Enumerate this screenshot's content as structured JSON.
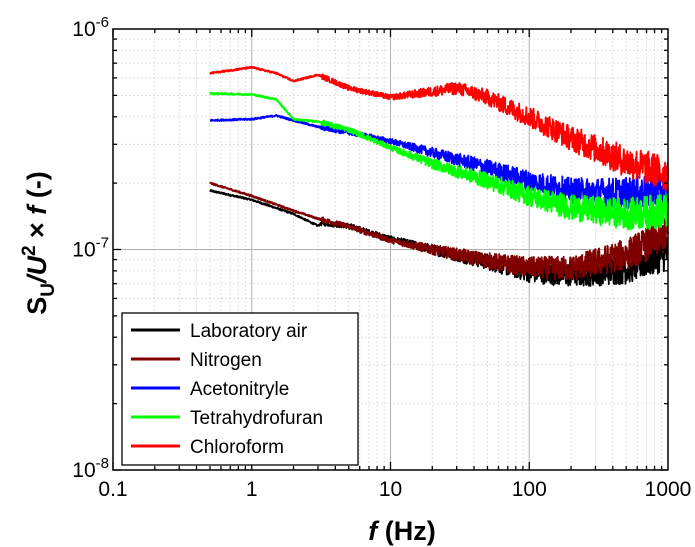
{
  "chart_data": {
    "type": "line",
    "xscale": "log",
    "yscale": "log",
    "xlim": [
      0.1,
      1000
    ],
    "ylim": [
      1e-08,
      1e-06
    ],
    "grid": true,
    "xlabel": {
      "italic": "f",
      "rest": " (Hz)"
    },
    "ylabel": {
      "S": "S",
      "sub": "U",
      "mid": "/U",
      "sup": "2",
      "times": " × ",
      "f": "f",
      "unit": " (-)"
    },
    "x_ticks": [
      {
        "value": 0.1,
        "label": "0.1"
      },
      {
        "value": 1,
        "label": "1"
      },
      {
        "value": 10,
        "label": "10"
      },
      {
        "value": 100,
        "label": "100"
      },
      {
        "value": 1000,
        "label": "1000"
      }
    ],
    "y_ticks": [
      {
        "value": 1e-08,
        "base": "10",
        "exp": "-8"
      },
      {
        "value": 1e-07,
        "base": "10",
        "exp": "-7"
      },
      {
        "value": 1e-06,
        "base": "10",
        "exp": "-6"
      }
    ],
    "legend_position": "bottom-left",
    "series": [
      {
        "name": "Laboratory air",
        "color": "#000000",
        "x": [
          0.5,
          1,
          2,
          3,
          3.2,
          5,
          10,
          20,
          50,
          100,
          200,
          500,
          1000
        ],
        "y": [
          1.85e-07,
          1.68e-07,
          1.45e-07,
          1.28e-07,
          1.32e-07,
          1.28e-07,
          1.12e-07,
          1e-07,
          8.8e-08,
          7.9e-08,
          7.7e-08,
          8.2e-08,
          9.7e-08
        ]
      },
      {
        "name": "Nitrogen",
        "color": "#800000",
        "x": [
          0.5,
          1,
          2,
          3,
          5,
          10,
          20,
          50,
          100,
          200,
          500,
          1000
        ],
        "y": [
          2e-07,
          1.75e-07,
          1.5e-07,
          1.38e-07,
          1.27e-07,
          1.1e-07,
          1e-07,
          8.9e-08,
          8.3e-08,
          8.2e-08,
          9.5e-08,
          1.18e-07
        ]
      },
      {
        "name": "Acetonitryle",
        "color": "#0000ff",
        "x": [
          0.5,
          1,
          1.5,
          2,
          3,
          5,
          10,
          20,
          50,
          100,
          200,
          500,
          1000
        ],
        "y": [
          3.85e-07,
          3.9e-07,
          4.05e-07,
          3.85e-07,
          3.6e-07,
          3.4e-07,
          3.1e-07,
          2.75e-07,
          2.35e-07,
          2.05e-07,
          1.85e-07,
          1.8e-07,
          1.85e-07
        ]
      },
      {
        "name": "Tetrahydrofuran",
        "color": "#00ff00",
        "x": [
          0.5,
          1,
          1.5,
          2,
          3,
          5,
          10,
          20,
          50,
          100,
          200,
          500,
          1000
        ],
        "y": [
          5.1e-07,
          5.05e-07,
          4.8e-07,
          3.9e-07,
          3.8e-07,
          3.5e-07,
          2.9e-07,
          2.45e-07,
          2.05e-07,
          1.75e-07,
          1.55e-07,
          1.45e-07,
          1.5e-07
        ]
      },
      {
        "name": "Chloroform",
        "color": "#ff0000",
        "x": [
          0.5,
          1,
          1.5,
          2,
          3,
          5,
          10,
          20,
          30,
          50,
          100,
          200,
          500,
          1000
        ],
        "y": [
          6.3e-07,
          6.7e-07,
          6.3e-07,
          5.8e-07,
          6.2e-07,
          5.4e-07,
          4.9e-07,
          5.2e-07,
          5.4e-07,
          4.9e-07,
          4e-07,
          3.2e-07,
          2.5e-07,
          2.2e-07
        ]
      }
    ]
  }
}
